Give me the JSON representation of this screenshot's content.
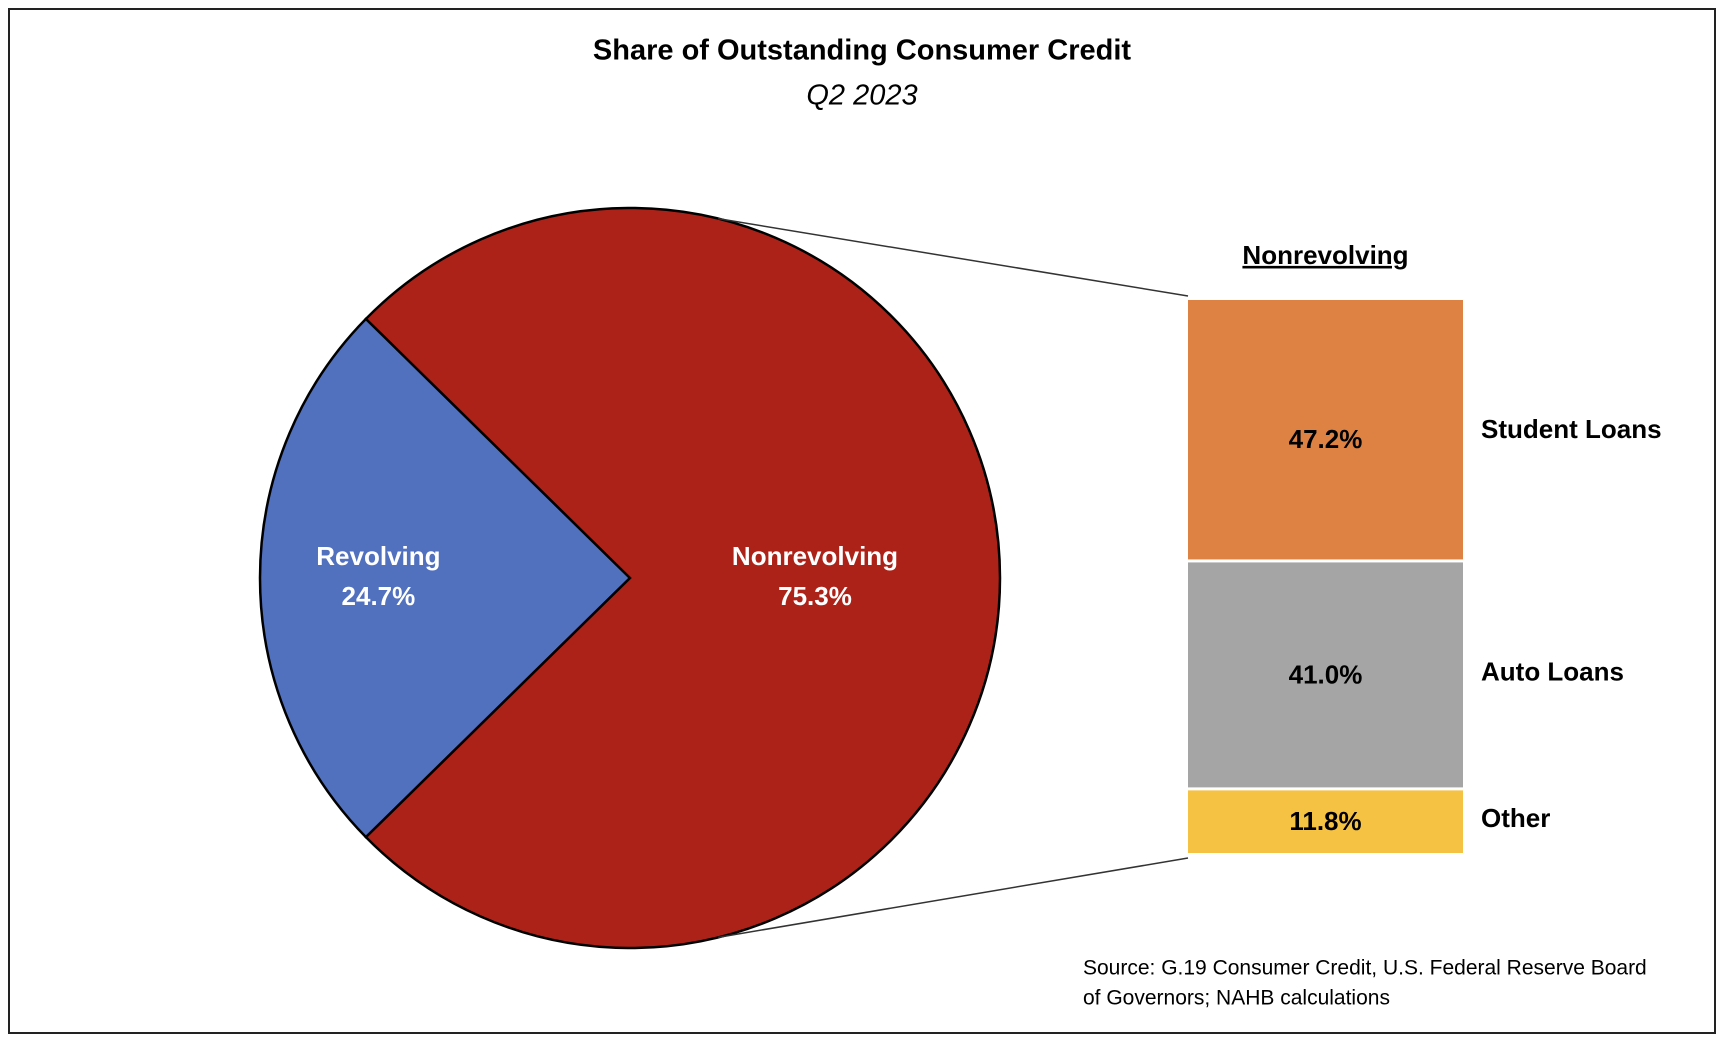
{
  "chart_data": [
    {
      "type": "pie",
      "title": "Share of Outstanding Consumer Credit",
      "subtitle": "Q2 2023",
      "categories": [
        "Revolving",
        "Nonrevolving"
      ],
      "values": [
        24.7,
        75.3
      ],
      "value_labels": [
        "24.7%",
        "75.3%"
      ],
      "colors": [
        "#5171bf",
        "#ad2218"
      ],
      "source": [
        "Source: G.19 Consumer Credit, U.S. Federal Reserve Board",
        "of Governors; NAHB calculations"
      ]
    },
    {
      "type": "stacked-bar",
      "title": "Nonrevolving",
      "categories": [
        "Student Loans",
        "Auto Loans",
        "Other"
      ],
      "values": [
        47.2,
        41.0,
        11.8
      ],
      "value_labels": [
        "47.2%",
        "41.0%",
        "11.8%"
      ],
      "colors": [
        "#de8244",
        "#a5a5a5",
        "#f5c243"
      ]
    }
  ]
}
